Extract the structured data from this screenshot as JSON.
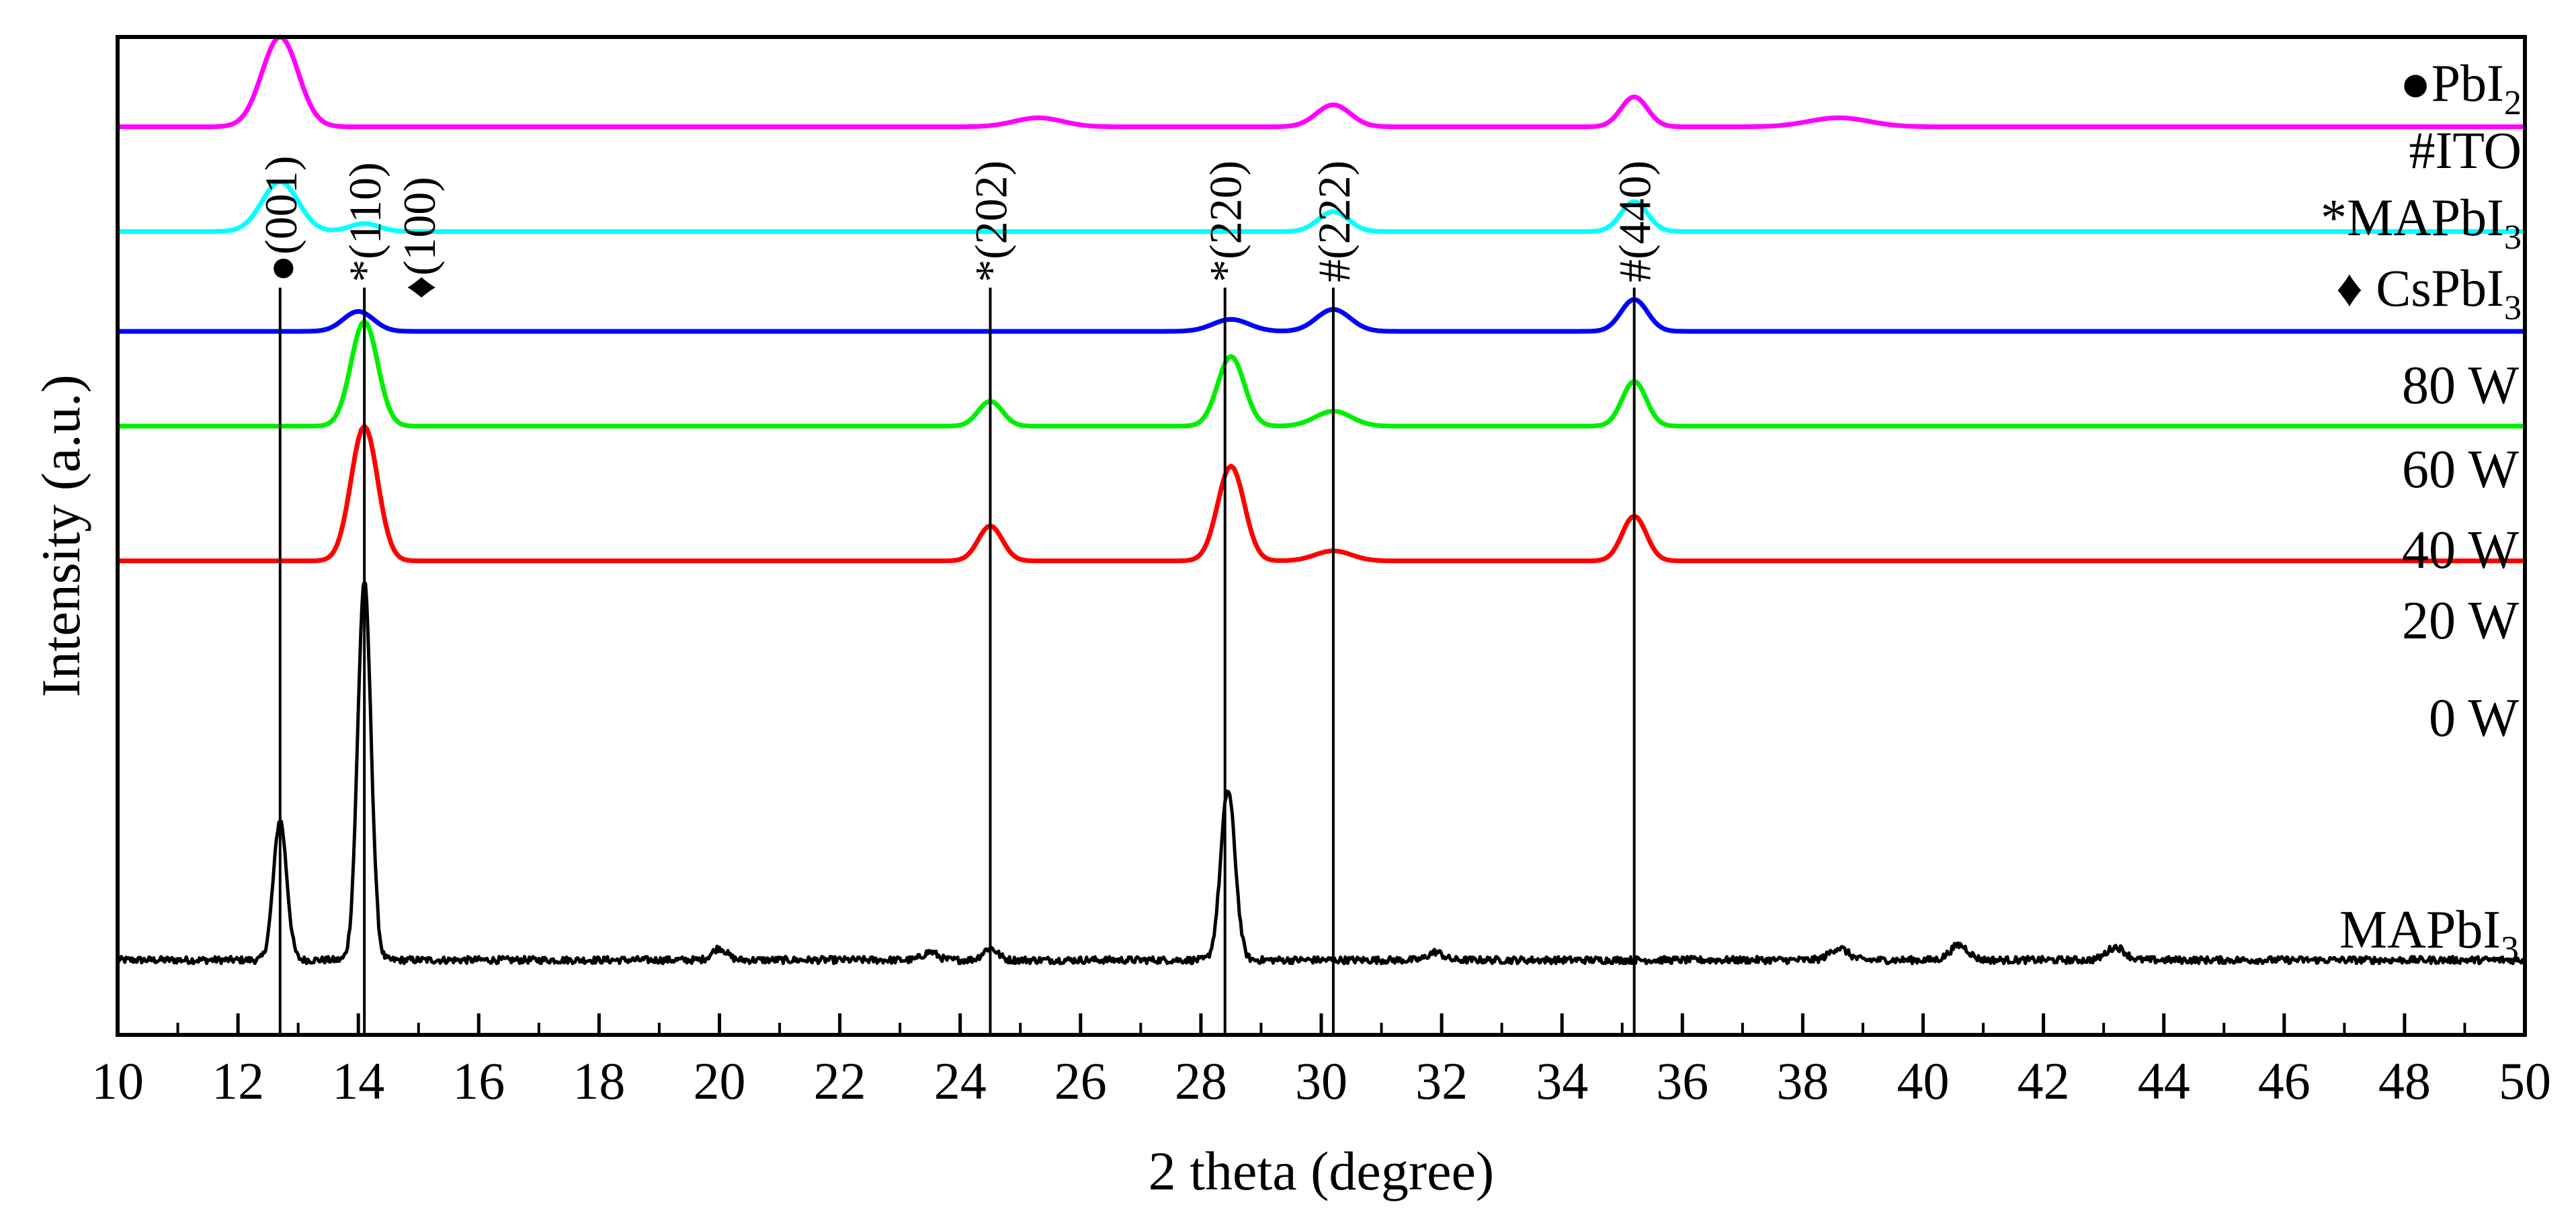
{
  "chart_data": {
    "type": "line",
    "xlabel": "2 theta (degree)",
    "ylabel": "Intensity (a.u.)",
    "xlim": [
      10,
      50
    ],
    "ylim": [
      0,
      100
    ],
    "x_ticks": [
      "10",
      "12",
      "14",
      "16",
      "18",
      "20",
      "22",
      "24",
      "26",
      "28",
      "30",
      "32",
      "34",
      "36",
      "38",
      "40",
      "42",
      "44",
      "46",
      "48",
      "50"
    ],
    "colors": {
      "mapbi3": "#000000",
      "w0": "#ff0000",
      "w20": "#00ee00",
      "w40": "#0000ff",
      "w60": "#00ffff",
      "w80": "#ff00ff",
      "axis": "#000000"
    },
    "series": [
      {
        "key": "mapbi3",
        "name": "MAPbI",
        "name_sub": "3",
        "baseline": 7.5,
        "noise": 0.35,
        "peaks": [
          {
            "x": 12.7,
            "h": 14,
            "w": 0.11
          },
          {
            "x": 14.1,
            "h": 38,
            "w": 0.11
          },
          {
            "x": 20.0,
            "h": 1.2,
            "w": 0.12
          },
          {
            "x": 23.5,
            "h": 0.8,
            "w": 0.12
          },
          {
            "x": 24.5,
            "h": 1.2,
            "w": 0.12
          },
          {
            "x": 28.45,
            "h": 17,
            "w": 0.12
          },
          {
            "x": 31.9,
            "h": 0.8,
            "w": 0.12
          },
          {
            "x": 38.6,
            "h": 1.2,
            "w": 0.15
          },
          {
            "x": 40.6,
            "h": 1.5,
            "w": 0.15
          },
          {
            "x": 43.2,
            "h": 1.3,
            "w": 0.15
          }
        ]
      },
      {
        "key": "w0",
        "name": "0 W",
        "baseline": 47.5,
        "noise": 0,
        "peaks": [
          {
            "x": 14.1,
            "h": 13.5,
            "w": 0.22
          },
          {
            "x": 24.5,
            "h": 3.5,
            "w": 0.2
          },
          {
            "x": 28.5,
            "h": 9.5,
            "w": 0.22
          },
          {
            "x": 30.2,
            "h": 1.0,
            "w": 0.3
          },
          {
            "x": 35.2,
            "h": 4.5,
            "w": 0.2
          }
        ]
      },
      {
        "key": "w20",
        "name": "20 W",
        "baseline": 61.0,
        "noise": 0,
        "peaks": [
          {
            "x": 14.1,
            "h": 10.5,
            "w": 0.22
          },
          {
            "x": 24.5,
            "h": 2.5,
            "w": 0.2
          },
          {
            "x": 28.5,
            "h": 7.0,
            "w": 0.22
          },
          {
            "x": 30.2,
            "h": 1.5,
            "w": 0.3
          },
          {
            "x": 35.2,
            "h": 4.5,
            "w": 0.2
          }
        ]
      },
      {
        "key": "w40",
        "name": "40 W",
        "baseline": 70.5,
        "noise": 0,
        "peaks": [
          {
            "x": 14.0,
            "h": 2.0,
            "w": 0.25
          },
          {
            "x": 28.5,
            "h": 1.2,
            "w": 0.3
          },
          {
            "x": 30.2,
            "h": 2.2,
            "w": 0.28
          },
          {
            "x": 35.2,
            "h": 3.2,
            "w": 0.22
          }
        ]
      },
      {
        "key": "w60",
        "name": "60 W",
        "baseline": 80.5,
        "noise": 0,
        "peaks": [
          {
            "x": 12.7,
            "h": 5.0,
            "w": 0.3
          },
          {
            "x": 14.1,
            "h": 0.8,
            "w": 0.25
          },
          {
            "x": 30.2,
            "h": 2.0,
            "w": 0.25
          },
          {
            "x": 35.2,
            "h": 3.0,
            "w": 0.22
          }
        ]
      },
      {
        "key": "w80",
        "name": "80 W",
        "baseline": 91.0,
        "noise": 0,
        "peaks": [
          {
            "x": 12.7,
            "h": 9.0,
            "w": 0.3
          },
          {
            "x": 25.3,
            "h": 0.9,
            "w": 0.4
          },
          {
            "x": 30.2,
            "h": 2.2,
            "w": 0.28
          },
          {
            "x": 35.2,
            "h": 3.0,
            "w": 0.22
          },
          {
            "x": 38.6,
            "h": 0.9,
            "w": 0.5
          }
        ]
      }
    ],
    "reference_lines": [
      {
        "x": 12.7,
        "marker": "●",
        "label": "(001)"
      },
      {
        "x": 14.1,
        "marker": "*",
        "label": "(110)"
      },
      {
        "x": 24.5,
        "marker": "*",
        "label": "(202)"
      },
      {
        "x": 28.4,
        "marker": "*",
        "label": "(220)"
      },
      {
        "x": 30.2,
        "marker": "#",
        "label": "(222)"
      },
      {
        "x": 35.2,
        "marker": "#",
        "label": "(440)"
      }
    ],
    "unlined_annotations": [
      {
        "x": 15.0,
        "marker": "♦",
        "label": "(100)"
      }
    ],
    "legend_entries": [
      {
        "marker": "●",
        "name": "PbI",
        "sub": "2"
      },
      {
        "marker": "#",
        "name": "ITO",
        "sub": ""
      },
      {
        "marker": "*",
        "name": "MAPbI",
        "sub": "3"
      },
      {
        "marker": "♦ ",
        "name": "CsPbI",
        "sub": "3"
      }
    ],
    "legend_position": "top-right"
  }
}
